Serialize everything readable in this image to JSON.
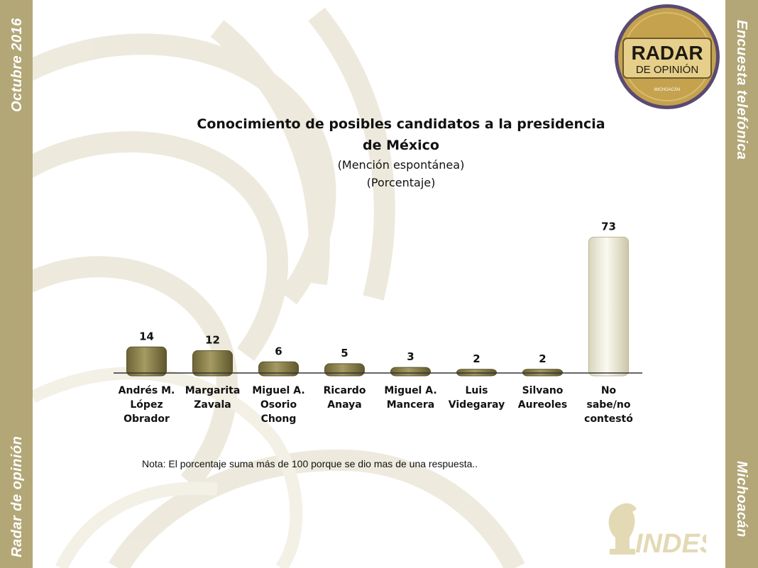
{
  "sidebar_left": {
    "top_text": "Octubre 2016",
    "bottom_text": "Radar de opinión"
  },
  "sidebar_right": {
    "top_text": "Encuesta telefónica",
    "bottom_text": "Michoacán"
  },
  "logo": {
    "line1": "RADAR",
    "line2": "DE OPINIÓN",
    "line3": "MICHOACÁN"
  },
  "brand": {
    "name": "INDES"
  },
  "chart_data": {
    "type": "bar",
    "title": "Conocimiento de posibles candidatos a la presidencia de México",
    "subtitle_1": "(Mención espontánea)",
    "subtitle_2": "(Porcentaje)",
    "categories": [
      [
        "Andrés M.",
        "López",
        "Obrador"
      ],
      [
        "Margarita",
        "Zavala"
      ],
      [
        "Miguel A.",
        "Osorio",
        "Chong"
      ],
      [
        "Ricardo",
        "Anaya"
      ],
      [
        "Miguel A.",
        "Mancera"
      ],
      [
        "Luis",
        "Videgaray"
      ],
      [
        "Silvano",
        "Aureoles"
      ],
      [
        "No",
        "sabe/no",
        "contestó"
      ]
    ],
    "values": [
      14,
      12,
      6,
      5,
      3,
      2,
      2,
      73
    ],
    "ylim": [
      0,
      80
    ],
    "grid": false,
    "legend": "none",
    "colors": {
      "bar": "#8a7f4a",
      "highlight_bar": "#efeddc",
      "axis": "#333333"
    }
  },
  "note": "Nota: El porcentaje suma más de 100 porque se dio mas de una respuesta.."
}
